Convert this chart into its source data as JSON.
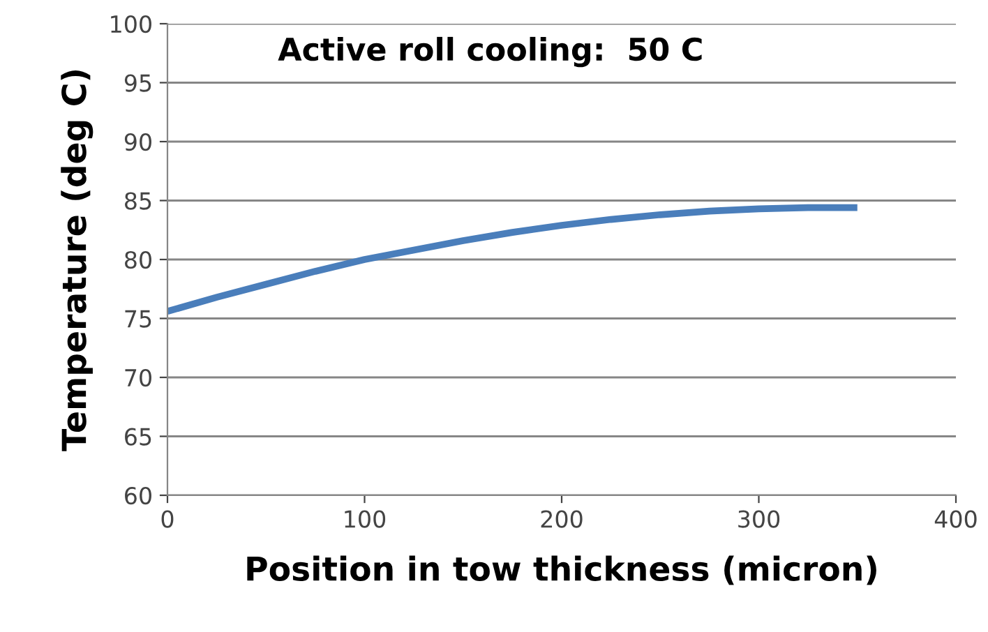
{
  "chart_data": {
    "type": "line",
    "xlabel": "Position in tow thickness (micron)",
    "ylabel": "Temperature (deg C)",
    "annotations": [
      "Active roll cooling:  50 C"
    ],
    "x": [
      0,
      25,
      50,
      75,
      100,
      125,
      150,
      175,
      200,
      225,
      250,
      275,
      300,
      325,
      350
    ],
    "series": [
      {
        "color": "#4a7ebb",
        "values": [
          75.6,
          76.8,
          77.9,
          79.0,
          80.0,
          80.8,
          81.6,
          82.3,
          82.9,
          83.4,
          83.8,
          84.1,
          84.3,
          84.4,
          84.4
        ]
      }
    ],
    "xlim": [
      0,
      400
    ],
    "xticks": [
      0,
      100,
      200,
      300,
      400
    ],
    "ylim": [
      60,
      100
    ],
    "yticks": [
      60,
      65,
      70,
      75,
      80,
      85,
      90,
      95,
      100
    ],
    "grid": "y",
    "legend": false,
    "marker": "none",
    "line_style": "solid"
  }
}
